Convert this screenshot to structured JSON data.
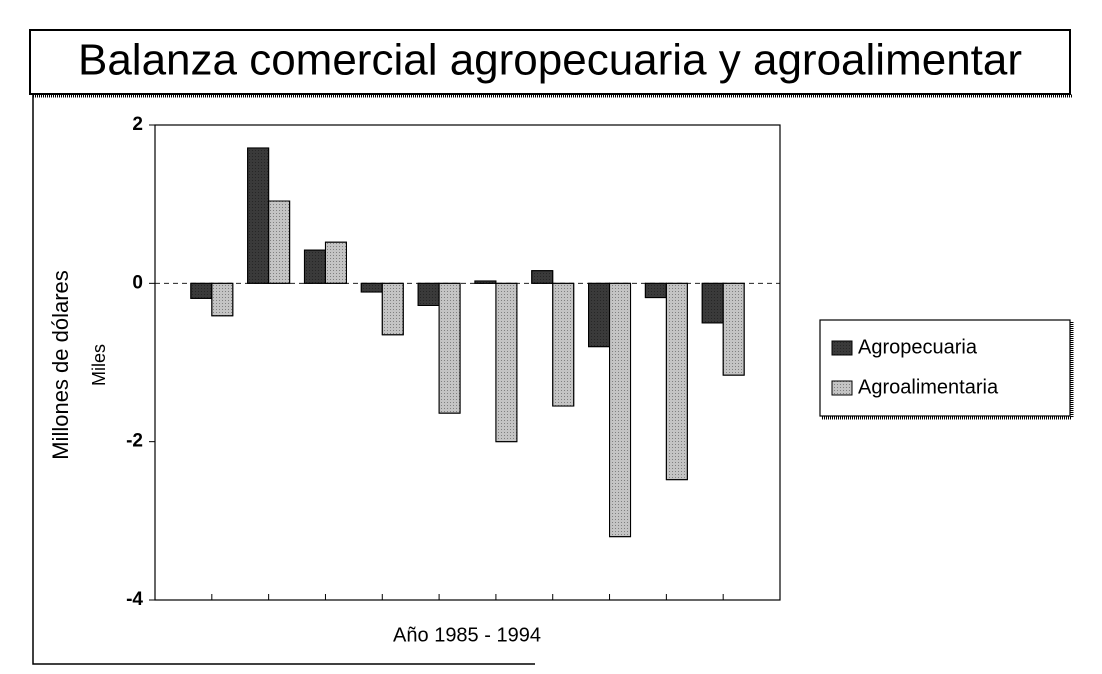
{
  "chart_data": {
    "type": "bar",
    "title": "Balanza comercial agropecuaria y agroalimentar",
    "ylabel": "Millones de dólares",
    "yunit": "Miles",
    "xlabel": "Año 1985 - 1994",
    "categories": [
      null,
      null,
      null,
      null,
      null,
      null,
      null,
      null,
      null,
      null
    ],
    "series": [
      {
        "name": "Agropecuaria",
        "color": "#3a3a3a",
        "values": [
          -0.19,
          1.71,
          0.42,
          -0.11,
          -0.28,
          0.03,
          0.16,
          -0.8,
          -0.18,
          -0.5
        ]
      },
      {
        "name": "Agroalimentaria",
        "color": "#c4c4c4",
        "values": [
          -0.41,
          1.04,
          0.52,
          -0.65,
          -1.64,
          -2.0,
          -1.55,
          -3.2,
          -2.48,
          -1.16
        ]
      }
    ],
    "ylim": [
      -4,
      2
    ],
    "yticks": [
      -4,
      -2,
      0,
      2
    ],
    "legend": "right"
  }
}
